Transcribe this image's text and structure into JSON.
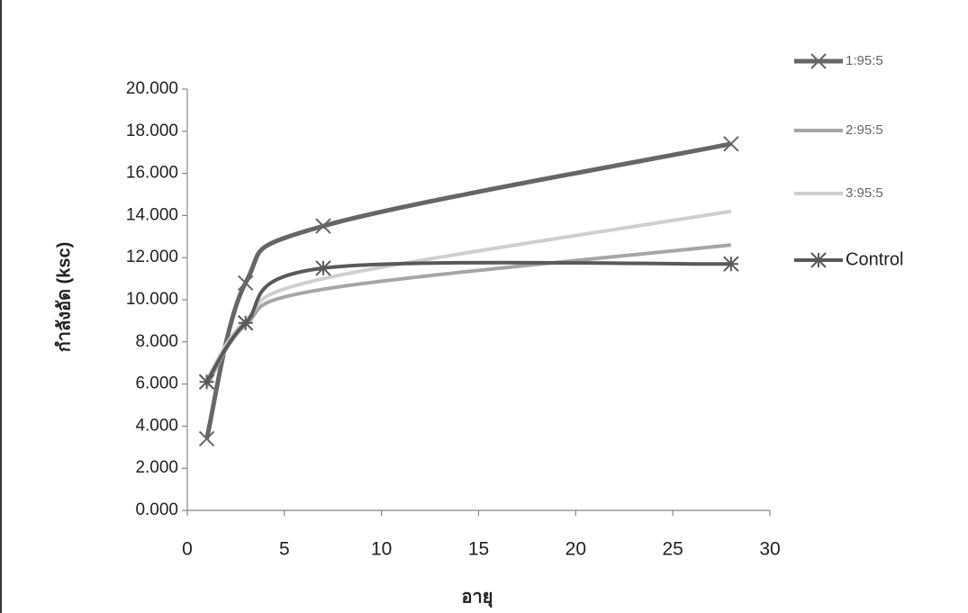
{
  "chart_data": {
    "type": "line",
    "x_label": "อายุ",
    "y_label": "กำลังอัด (ksc)",
    "x": [
      1,
      3,
      7,
      28
    ],
    "series": [
      {
        "name": "1:95:5",
        "color": "#666666",
        "width": 5,
        "marker": "x",
        "values": [
          3.4,
          10.8,
          13.5,
          17.4
        ]
      },
      {
        "name": "2:95:5",
        "color": "#a6a6a6",
        "width": 4,
        "values": [
          5.9,
          8.8,
          10.5,
          12.6
        ]
      },
      {
        "name": "3:95:5",
        "color": "#cfcfcf",
        "width": 4,
        "values": [
          6.2,
          9.0,
          11.0,
          14.2
        ]
      },
      {
        "name": "Control",
        "color": "#595959",
        "width": 4,
        "marker": "star",
        "values": [
          6.1,
          8.9,
          11.5,
          11.7
        ]
      }
    ],
    "xlim": [
      0,
      30
    ],
    "xticks": [
      0,
      5,
      10,
      15,
      20,
      25,
      30
    ],
    "ylim": [
      0,
      20
    ],
    "yticks": [
      {
        "value": 0,
        "label": "0.000"
      },
      {
        "value": 2,
        "label": "2.000"
      },
      {
        "value": 4,
        "label": "4.000"
      },
      {
        "value": 6,
        "label": "6.000"
      },
      {
        "value": 8,
        "label": "8.000"
      },
      {
        "value": 10,
        "label": "10.000"
      },
      {
        "value": 12,
        "label": "12.000"
      },
      {
        "value": 14,
        "label": "14.000"
      },
      {
        "value": 16,
        "label": "16.000"
      },
      {
        "value": 18,
        "label": "18.000"
      },
      {
        "value": 20,
        "label": "20.000"
      }
    ],
    "smooth": true,
    "legend": "right"
  }
}
